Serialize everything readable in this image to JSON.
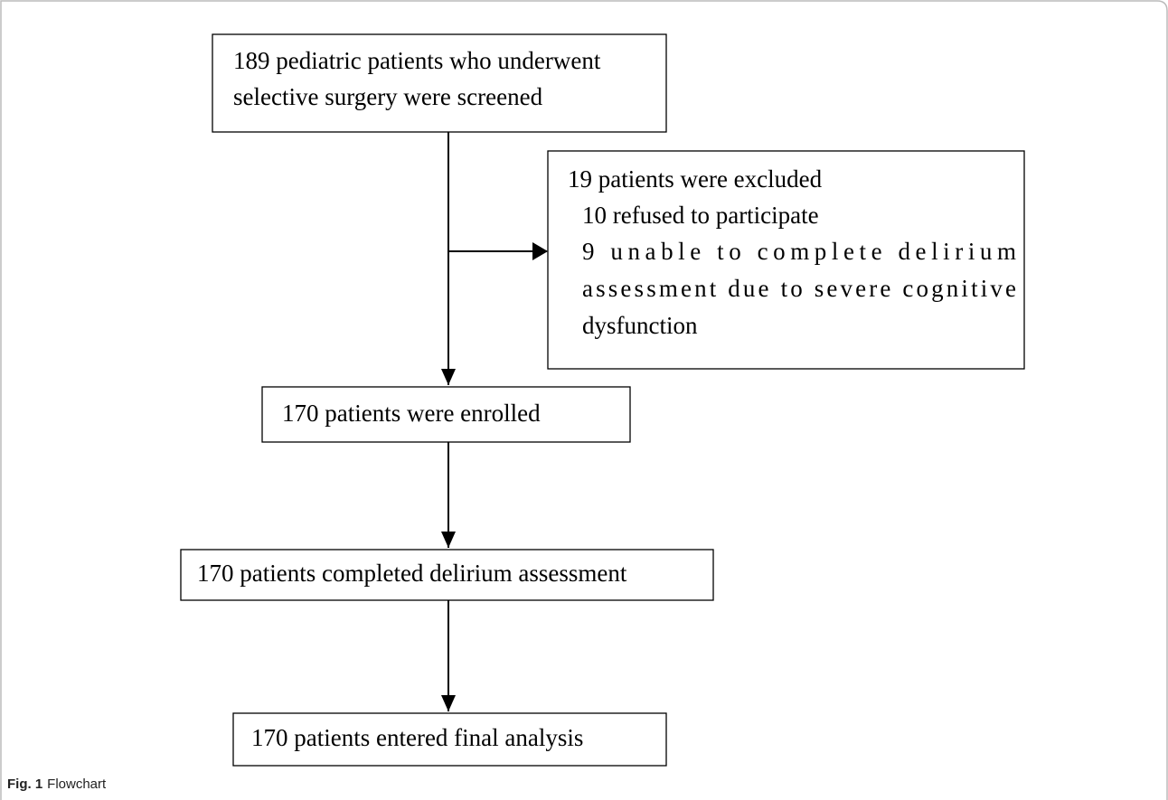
{
  "nodes": [
    {
      "label_lines": [
        "189 pediatric patients who underwent",
        "selective surgery were screened"
      ]
    },
    {
      "label_lines": [
        "170 patients were enrolled"
      ]
    },
    {
      "label_lines": [
        "170 patients completed delirium assessment"
      ]
    },
    {
      "label_lines": [
        "170 patients entered final analysis"
      ]
    }
  ],
  "exclusion": {
    "title": "19 patients were excluded",
    "lines": [
      "10 refused to participate",
      "9 unable to complete delirium",
      "assessment due to severe cognitive",
      "dysfunction"
    ]
  },
  "caption": {
    "label": "Fig. 1",
    "text": "Flowchart"
  }
}
